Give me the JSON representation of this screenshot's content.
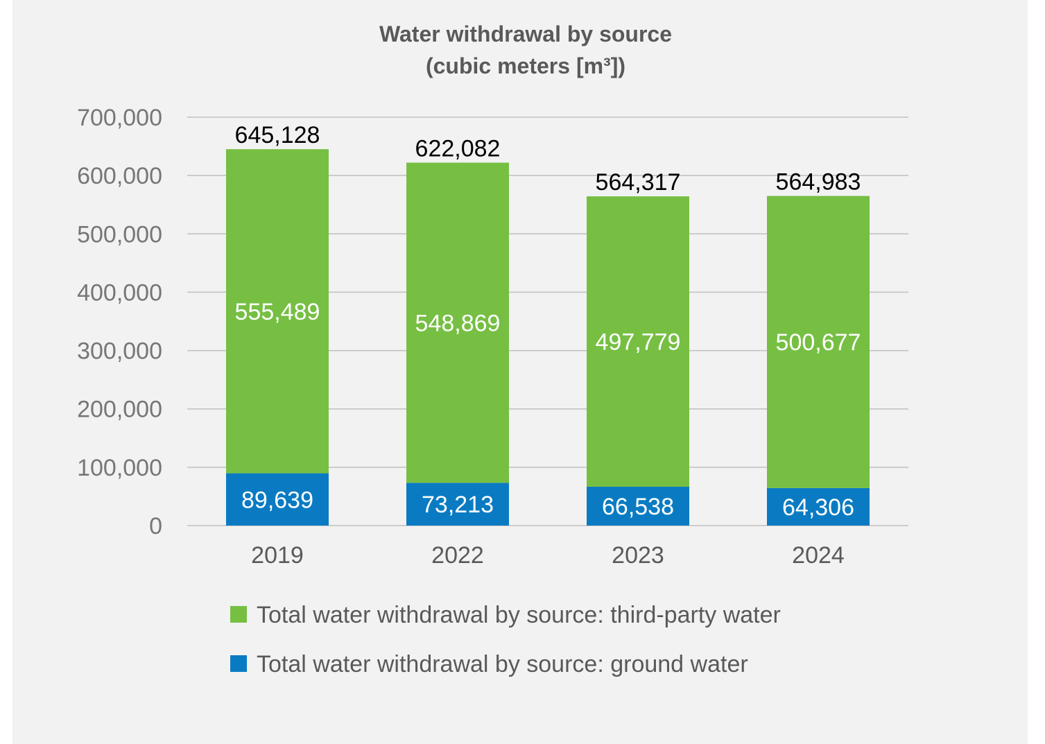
{
  "chart_data": {
    "type": "bar",
    "stacked": true,
    "title_lines": [
      "Water withdrawal by source",
      "(cubic meters [m³])"
    ],
    "categories": [
      "2019",
      "2022",
      "2023",
      "2024"
    ],
    "series": [
      {
        "name": "Total water withdrawal by source: ground water",
        "color": "#0a7bc2",
        "values": [
          89639,
          73213,
          66538,
          64306
        ],
        "labels": [
          "89,639",
          "73,213",
          "66,538",
          "64,306"
        ]
      },
      {
        "name": "Total water withdrawal by source: third-party water",
        "color": "#76bf43",
        "values": [
          555489,
          548869,
          497779,
          500677
        ],
        "labels": [
          "555,489",
          "548,869",
          "497,779",
          "500,677"
        ]
      }
    ],
    "totals": [
      645128,
      622082,
      564317,
      564983
    ],
    "total_labels": [
      "645,128",
      "622,082",
      "564,317",
      "564,983"
    ],
    "yticks": [
      0,
      100000,
      200000,
      300000,
      400000,
      500000,
      600000,
      700000
    ],
    "ytick_labels": [
      "0",
      "100,000",
      "200,000",
      "300,000",
      "400,000",
      "500,000",
      "600,000",
      "700,000"
    ],
    "ylim": [
      0,
      700000
    ],
    "legend_order": [
      "Total water withdrawal by source: third-party water",
      "Total water withdrawal by source: ground water"
    ],
    "legend_position": "bottom",
    "grid": true
  }
}
